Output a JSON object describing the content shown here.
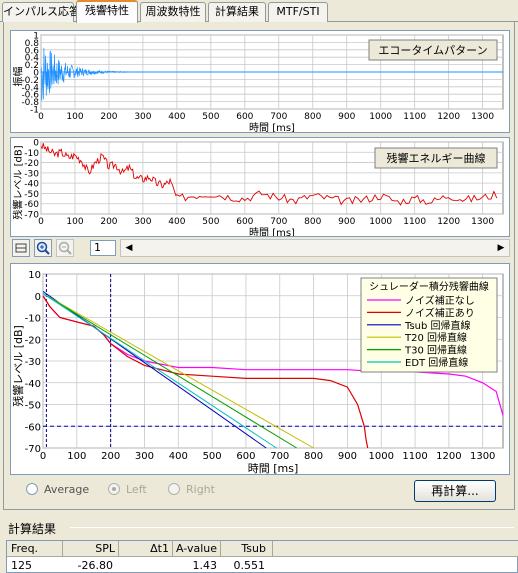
{
  "tabs": [
    {
      "label": "インパルス応答"
    },
    {
      "label": "残響特性"
    },
    {
      "label": "周波数特性"
    },
    {
      "label": "計算結果"
    },
    {
      "label": "MTF/STI"
    }
  ],
  "echo_chart": {
    "title": "エコータイムパターン",
    "ylabel": "振幅",
    "xlabel": "時間 [ms]",
    "yticks": [
      "1",
      "0.8",
      "0.6",
      "0.4",
      "0.2",
      "0",
      "-0.2",
      "-0.4",
      "-0.6",
      "-0.8",
      "-1"
    ],
    "xticks": [
      "0",
      "100",
      "200",
      "300",
      "400",
      "500",
      "600",
      "700",
      "800",
      "900",
      "1000",
      "1100",
      "1200",
      "1300"
    ]
  },
  "energy_chart": {
    "title": "残響エネルギー曲線",
    "ylabel": "残響レベル [dB]",
    "xlabel": "時間 [ms]",
    "yticks": [
      "0",
      "-10",
      "-20",
      "-30",
      "-40",
      "-50",
      "-60",
      "-70"
    ],
    "xticks": [
      "0",
      "100",
      "200",
      "300",
      "400",
      "500",
      "600",
      "700",
      "800",
      "900",
      "1000",
      "1100",
      "1200",
      "1300"
    ]
  },
  "toolbar": {
    "page": "1"
  },
  "schroeder_chart": {
    "ylabel": "残響レベル [dB]",
    "xlabel": "時間 [ms]",
    "yticks": [
      "10",
      "0",
      "-10",
      "-20",
      "-30",
      "-40",
      "-50",
      "-60",
      "-70"
    ],
    "xticks": [
      "0",
      "100",
      "200",
      "300",
      "400",
      "500",
      "600",
      "700",
      "800",
      "900",
      "1000",
      "1100",
      "1200",
      "1300"
    ],
    "legend_title": "シュレーダー積分残響曲線",
    "legend": [
      {
        "label": "ノイズ補正なし",
        "color": "#ff00ff"
      },
      {
        "label": "ノイズ補正あり",
        "color": "#e00000"
      },
      {
        "label": "Tsub 回帰直線",
        "color": "#0000c0"
      },
      {
        "label": "T20 回帰直線",
        "color": "#c0c000"
      },
      {
        "label": "T30 回帰直線",
        "color": "#00a000"
      },
      {
        "label": "EDT 回帰直線",
        "color": "#00c0c0"
      }
    ]
  },
  "options": {
    "average": "Average",
    "left": "Left",
    "right": "Right",
    "recalc": "再計算..."
  },
  "results": {
    "title": "計算結果",
    "headers": [
      "Freq.",
      "SPL",
      "Δt1",
      "A-value",
      "Tsub"
    ],
    "row": [
      "125",
      "-26.80",
      "",
      "1.43",
      "0.551"
    ]
  },
  "chart_data": [
    {
      "type": "line",
      "title": "エコータイムパターン",
      "xlabel": "時間 [ms]",
      "ylabel": "振幅",
      "xlim": [
        0,
        1360
      ],
      "ylim": [
        -1,
        1
      ]
    },
    {
      "type": "line",
      "title": "残響エネルギー曲線",
      "xlabel": "時間 [ms]",
      "ylabel": "残響レベル [dB]",
      "xlim": [
        0,
        1360
      ],
      "ylim": [
        -70,
        0
      ],
      "series": [
        {
          "x": [
            0,
            20,
            40,
            60,
            80,
            100,
            120,
            140,
            160,
            180,
            200,
            220,
            240,
            260,
            280,
            300,
            320,
            340,
            360,
            380,
            400,
            450,
            500,
            550,
            600,
            650,
            700,
            750,
            800,
            850,
            900,
            950,
            1000,
            1050,
            1100,
            1150,
            1200,
            1250,
            1300,
            1350
          ],
          "values": [
            -3,
            -8,
            -12,
            -10,
            -15,
            -13,
            -18,
            -30,
            -20,
            -14,
            -24,
            -22,
            -30,
            -25,
            -35,
            -36,
            -34,
            -40,
            -42,
            -38,
            -55,
            -52,
            -50,
            -53,
            -55,
            -50,
            -54,
            -57,
            -52,
            -55,
            -58,
            -56,
            -52,
            -58,
            -55,
            -58,
            -52,
            -56,
            -54,
            -50
          ]
        }
      ]
    },
    {
      "type": "line",
      "xlabel": "時間 [ms]",
      "ylabel": "残響レベル [dB]",
      "xlim": [
        0,
        1360
      ],
      "ylim": [
        -70,
        10
      ],
      "series": [
        {
          "name": "ノイズ補正なし",
          "color": "#ff00ff",
          "x": [
            0,
            20,
            50,
            100,
            150,
            180,
            200,
            250,
            300,
            400,
            500,
            600,
            700,
            800,
            900,
            1000,
            1100,
            1200,
            1250,
            1300,
            1340,
            1360
          ],
          "values": [
            0,
            -5,
            -10,
            -12,
            -14,
            -18,
            -22,
            -27,
            -30,
            -33,
            -33,
            -34,
            -34,
            -34,
            -34,
            -35,
            -35,
            -36,
            -37,
            -40,
            -44,
            -55
          ]
        },
        {
          "name": "ノイズ補正あり",
          "color": "#e00000",
          "x": [
            0,
            20,
            50,
            100,
            150,
            180,
            200,
            250,
            300,
            400,
            500,
            600,
            700,
            800,
            850,
            900,
            930,
            950,
            955,
            960
          ],
          "values": [
            0,
            -5,
            -10,
            -12,
            -14,
            -18,
            -22,
            -28,
            -32,
            -36,
            -37,
            -38,
            -38,
            -38,
            -39,
            -42,
            -50,
            -60,
            -66,
            -70
          ]
        },
        {
          "name": "Tsub 回帰直線",
          "color": "#0000c0",
          "x": [
            0,
            660
          ],
          "values": [
            2,
            -70
          ]
        },
        {
          "name": "T20 回帰直線",
          "color": "#c0c000",
          "x": [
            0,
            800
          ],
          "values": [
            1,
            -70
          ]
        },
        {
          "name": "T30 回帰直線",
          "color": "#00a000",
          "x": [
            0,
            750
          ],
          "values": [
            1,
            -70
          ]
        },
        {
          "name": "EDT 回帰直線",
          "color": "#00c0c0",
          "x": [
            0,
            690
          ],
          "values": [
            1,
            -70
          ]
        }
      ],
      "vlines": [
        10,
        200
      ],
      "hline": -60
    }
  ]
}
